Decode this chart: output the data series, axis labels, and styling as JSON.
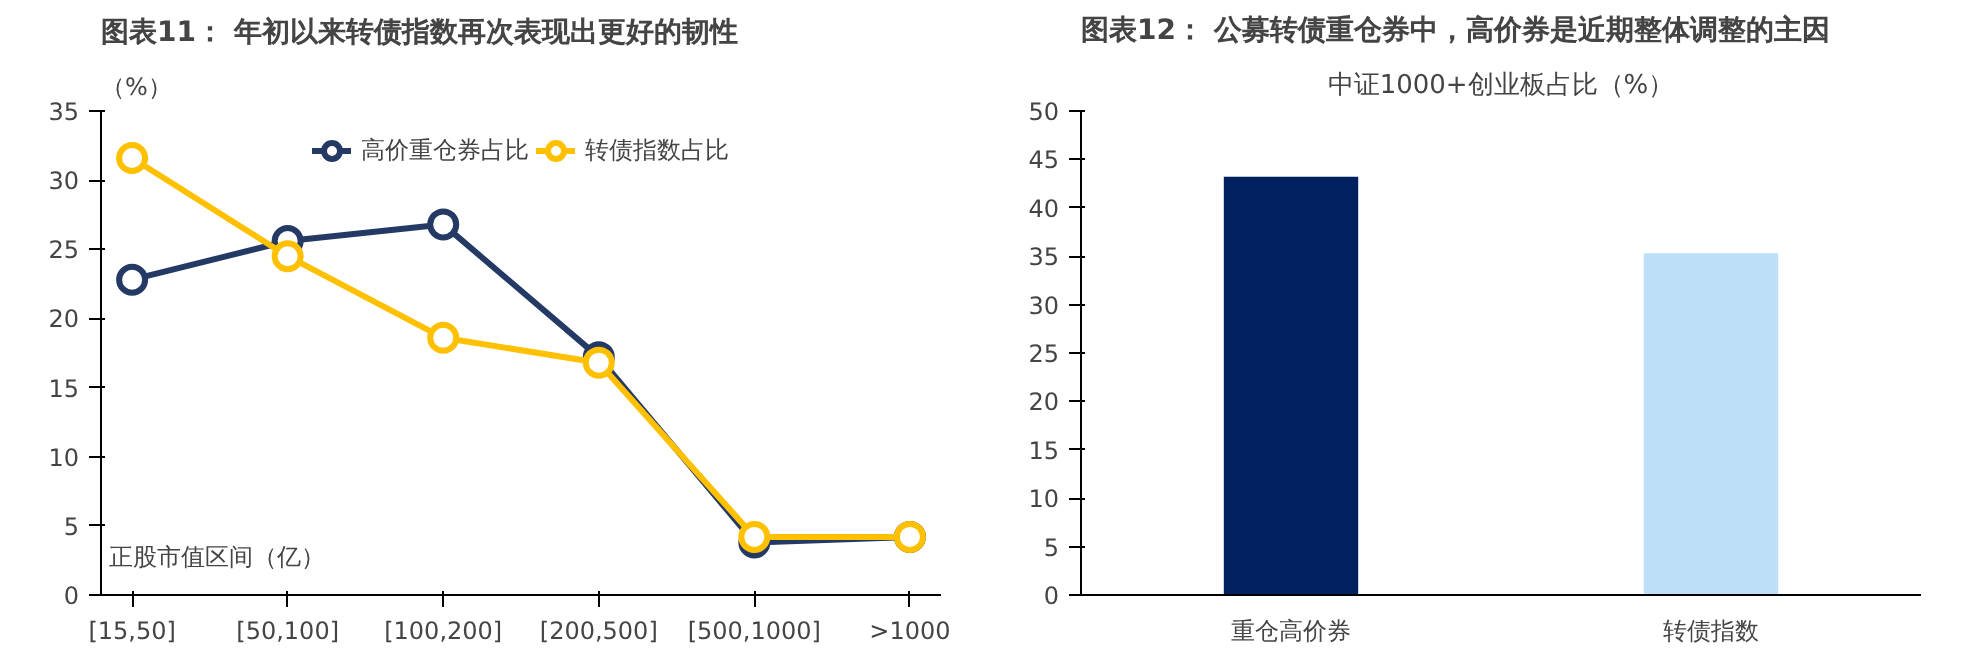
{
  "chart_data": [
    {
      "type": "line",
      "title": "图表11：  年初以来转债指数再次表现出更好的韧性",
      "ylabel": "（%）",
      "annotations": [
        "正股市值区间（亿）"
      ],
      "categories": [
        "[15,50]",
        "[50,100]",
        "[100,200]",
        "[200,500]",
        "[500,1000]",
        ">1000"
      ],
      "series": [
        {
          "name": "高价重仓券占比",
          "color": "#243a64",
          "values": [
            22.8,
            25.6,
            26.8,
            17.2,
            3.8,
            4.2
          ]
        },
        {
          "name": "转债指数占比",
          "color": "#ffc000",
          "values": [
            31.6,
            24.5,
            18.6,
            16.8,
            4.2,
            4.2
          ]
        }
      ],
      "ylim": [
        0,
        35
      ],
      "yticks": [
        0,
        5,
        10,
        15,
        20,
        25,
        30,
        35
      ],
      "grid": false,
      "legend": "top",
      "marker": "circle",
      "line_style": "solid"
    },
    {
      "type": "bar",
      "title": "图表12：  公募转债重仓券中，高价券是近期整体调整的主因",
      "subtitle": "中证1000+创业板占比（%）",
      "categories": [
        "重仓高价券",
        "转债指数"
      ],
      "values": [
        43.2,
        35.3
      ],
      "colors": [
        "#002060",
        "#bde0f8"
      ],
      "ylim": [
        0,
        50
      ],
      "yticks": [
        0,
        5,
        10,
        15,
        20,
        25,
        30,
        35,
        40,
        45,
        50
      ],
      "grid": false
    }
  ]
}
